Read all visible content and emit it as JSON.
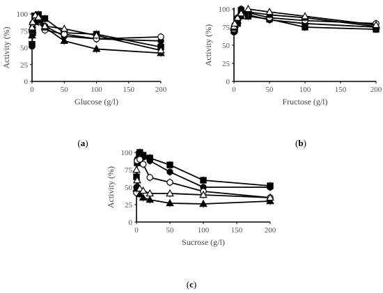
{
  "figure": {
    "panels": [
      {
        "label_open": "(",
        "label_letter": "a",
        "label_close": ")"
      },
      {
        "label_open": "(",
        "label_letter": "b",
        "label_close": ")"
      },
      {
        "label_open": "(",
        "label_letter": "c",
        "label_close": ")"
      }
    ]
  },
  "chart_data": [
    {
      "type": "line",
      "xlabel": "Glucose (g/l)",
      "ylabel": "Activity (%)",
      "xlim": [
        0,
        200
      ],
      "ylim": [
        0,
        100
      ],
      "xticks": [
        0,
        50,
        100,
        150,
        200
      ],
      "yticks": [
        0,
        25,
        50,
        75,
        100
      ],
      "grid": false,
      "series": [
        {
          "marker": "filled-square",
          "x": [
            0,
            1,
            5,
            10,
            20,
            50,
            100,
            200
          ],
          "y": [
            55,
            72,
            97,
            99,
            93,
            72,
            70,
            51
          ]
        },
        {
          "marker": "filled-circle",
          "x": [
            0,
            1,
            5,
            10,
            20,
            50,
            100,
            200
          ],
          "y": [
            52,
            80,
            95,
            98,
            82,
            67,
            63,
            60
          ]
        },
        {
          "marker": "open-circle",
          "x": [
            0,
            1,
            5,
            10,
            20,
            50,
            100,
            200
          ],
          "y": [
            74,
            86,
            90,
            88,
            76,
            70,
            63,
            66
          ]
        },
        {
          "marker": "filled-triangle",
          "x": [
            0,
            1,
            5,
            10,
            20,
            50,
            100,
            200
          ],
          "y": [
            68,
            76,
            88,
            90,
            80,
            60,
            48,
            42
          ]
        },
        {
          "marker": "open-triangle",
          "x": [
            0,
            1,
            5,
            10,
            20,
            50,
            100,
            200
          ],
          "y": [
            80,
            88,
            98,
            95,
            82,
            78,
            68,
            46
          ]
        }
      ]
    },
    {
      "type": "line",
      "xlabel": "Fructose (g/l)",
      "ylabel": "Activity (%)",
      "xlim": [
        0,
        200
      ],
      "ylim": [
        0,
        100
      ],
      "xticks": [
        0,
        50,
        100,
        150,
        200
      ],
      "yticks": [
        0,
        25,
        50,
        75,
        100
      ],
      "grid": false,
      "series": [
        {
          "marker": "filled-square",
          "x": [
            0,
            1,
            5,
            10,
            20,
            50,
            100,
            200
          ],
          "y": [
            70,
            72,
            80,
            98,
            90,
            86,
            75,
            72
          ]
        },
        {
          "marker": "filled-circle",
          "x": [
            0,
            1,
            5,
            10,
            20,
            50,
            100,
            200
          ],
          "y": [
            68,
            74,
            88,
            100,
            92,
            85,
            80,
            75
          ]
        },
        {
          "marker": "open-circle",
          "x": [
            0,
            1,
            5,
            10,
            20,
            50,
            100,
            200
          ],
          "y": [
            72,
            78,
            86,
            92,
            95,
            88,
            84,
            80
          ]
        },
        {
          "marker": "filled-triangle",
          "x": [
            0,
            1,
            5,
            10,
            20,
            50,
            100,
            200
          ],
          "y": [
            74,
            78,
            84,
            90,
            96,
            92,
            88,
            76
          ]
        },
        {
          "marker": "open-triangle",
          "x": [
            0,
            1,
            5,
            10,
            20,
            50,
            100,
            200
          ],
          "y": [
            76,
            80,
            88,
            94,
            100,
            96,
            90,
            78
          ]
        }
      ]
    },
    {
      "type": "line",
      "xlabel": "Sucrose (g/l)",
      "ylabel": "Activity (%)",
      "xlim": [
        0,
        200
      ],
      "ylim": [
        0,
        100
      ],
      "xticks": [
        0,
        50,
        100,
        150,
        200
      ],
      "yticks": [
        0,
        25,
        50,
        75,
        100
      ],
      "grid": false,
      "series": [
        {
          "marker": "filled-square",
          "x": [
            0,
            1,
            5,
            10,
            20,
            50,
            100,
            200
          ],
          "y": [
            65,
            85,
            100,
            96,
            92,
            82,
            60,
            52
          ]
        },
        {
          "marker": "filled-circle",
          "x": [
            0,
            1,
            5,
            10,
            20,
            50,
            100,
            200
          ],
          "y": [
            50,
            90,
            97,
            93,
            88,
            72,
            50,
            50
          ]
        },
        {
          "marker": "open-circle",
          "x": [
            0,
            1,
            5,
            10,
            20,
            50,
            100,
            200
          ],
          "y": [
            42,
            88,
            90,
            83,
            64,
            57,
            44,
            35
          ]
        },
        {
          "marker": "filled-triangle",
          "x": [
            0,
            1,
            5,
            10,
            20,
            50,
            100,
            200
          ],
          "y": [
            48,
            60,
            40,
            35,
            32,
            27,
            26,
            30
          ]
        },
        {
          "marker": "open-triangle",
          "x": [
            0,
            1,
            5,
            10,
            20,
            50,
            100,
            200
          ],
          "y": [
            75,
            60,
            48,
            45,
            41,
            41,
            39,
            35
          ]
        }
      ]
    }
  ]
}
